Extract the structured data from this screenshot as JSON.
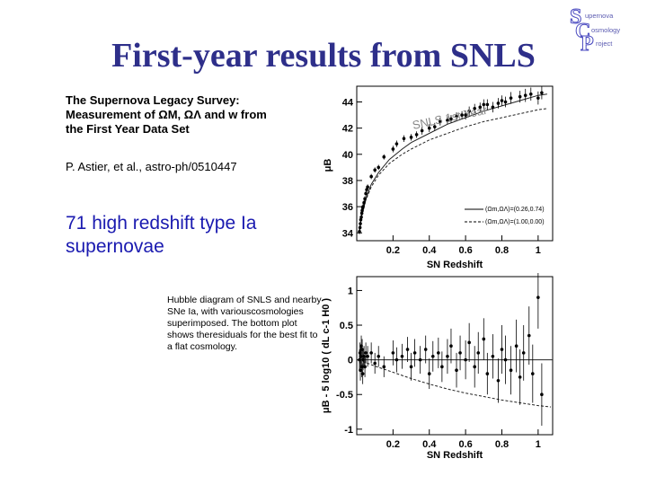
{
  "slide": {
    "title": "First-year results from SNLS",
    "paper_title_lines": [
      "The Supernova Legacy Survey:",
      "Measurement of ΩM, ΩΛ and w from",
      "the First Year Data Set"
    ],
    "authors": "P. Astier, et al., astro-ph/0510447",
    "highlight": "71 high redshift type Ia supernovae",
    "caption": "Hubble diagram of SNLS and nearby SNe Ia, with variouscosmologies superimposed. The bottom plot shows theresiduals for the best fit to a flat cosmology."
  },
  "logo": {
    "text_lines": [
      "upernova",
      "osmology",
      "roject"
    ],
    "letters": [
      "S",
      "C",
      "P"
    ],
    "colors": {
      "outline": "#4a4ac0",
      "text": "#5a5ab0"
    }
  },
  "chart_data": [
    {
      "type": "scatter",
      "title": "",
      "annotation": "SNLS 1st Year",
      "xlabel": "SN Redshift",
      "ylabel": "μB",
      "xlim": [
        0,
        1.08
      ],
      "ylim": [
        33.4,
        45.2
      ],
      "xticks": [
        "0.2",
        "0.4",
        "0.6",
        "0.8",
        "1"
      ],
      "xtick_values": [
        0.2,
        0.4,
        0.6,
        0.8,
        1.0
      ],
      "yticks": [
        "34",
        "36",
        "38",
        "40",
        "42",
        "44"
      ],
      "ytick_values": [
        34,
        36,
        38,
        40,
        42,
        44
      ],
      "legend": [
        {
          "label": "(Ωm,ΩΛ)=(0.26,0.74)",
          "style": "solid"
        },
        {
          "label": "(Ωm,ΩΛ)=(1.00,0.00)",
          "style": "dashed"
        }
      ],
      "legend_position": "right",
      "grid": false,
      "series": [
        {
          "name": "(Ωm,ΩΛ)=(0.26,0.74)",
          "style": "solid",
          "x": [
            0.015,
            0.02,
            0.03,
            0.05,
            0.08,
            0.12,
            0.18,
            0.25,
            0.3,
            0.4,
            0.5,
            0.6,
            0.7,
            0.8,
            0.9,
            1.0,
            1.05
          ],
          "y": [
            34.0,
            34.6,
            35.5,
            36.6,
            37.7,
            38.6,
            39.6,
            40.4,
            40.9,
            41.6,
            42.3,
            42.8,
            43.3,
            43.7,
            44.1,
            44.5,
            44.6
          ]
        },
        {
          "name": "(Ωm,ΩΛ)=(1.00,0.00)",
          "style": "dashed",
          "x": [
            0.015,
            0.02,
            0.03,
            0.05,
            0.08,
            0.12,
            0.18,
            0.25,
            0.3,
            0.4,
            0.5,
            0.6,
            0.7,
            0.8,
            0.9,
            1.0,
            1.05
          ],
          "y": [
            34.0,
            34.6,
            35.5,
            36.5,
            37.5,
            38.4,
            39.3,
            40.0,
            40.4,
            41.1,
            41.6,
            42.1,
            42.5,
            42.8,
            43.1,
            43.4,
            43.5
          ]
        }
      ],
      "points": {
        "x": [
          0.015,
          0.018,
          0.02,
          0.022,
          0.025,
          0.028,
          0.03,
          0.033,
          0.035,
          0.04,
          0.045,
          0.05,
          0.055,
          0.06,
          0.08,
          0.1,
          0.12,
          0.15,
          0.2,
          0.22,
          0.26,
          0.3,
          0.33,
          0.36,
          0.4,
          0.43,
          0.46,
          0.5,
          0.52,
          0.55,
          0.58,
          0.6,
          0.62,
          0.65,
          0.68,
          0.7,
          0.72,
          0.75,
          0.78,
          0.8,
          0.82,
          0.85,
          0.9,
          0.93,
          0.96,
          1.0,
          1.02
        ],
        "y": [
          34.1,
          34.4,
          34.7,
          35.0,
          35.2,
          35.5,
          35.7,
          35.9,
          36.0,
          36.3,
          36.6,
          37.0,
          37.3,
          37.5,
          38.3,
          38.8,
          39.0,
          39.8,
          40.4,
          40.8,
          41.2,
          41.3,
          41.5,
          41.8,
          42.0,
          42.1,
          42.5,
          42.6,
          42.7,
          42.9,
          43.0,
          43.0,
          43.3,
          43.5,
          43.6,
          43.8,
          43.8,
          43.6,
          43.9,
          44.1,
          44.0,
          44.3,
          44.4,
          44.5,
          44.6,
          44.3,
          44.7
        ],
        "err": [
          0.2,
          0.2,
          0.2,
          0.2,
          0.2,
          0.2,
          0.2,
          0.2,
          0.2,
          0.2,
          0.2,
          0.2,
          0.2,
          0.2,
          0.2,
          0.2,
          0.2,
          0.2,
          0.25,
          0.25,
          0.25,
          0.25,
          0.25,
          0.3,
          0.3,
          0.3,
          0.3,
          0.3,
          0.3,
          0.3,
          0.3,
          0.35,
          0.35,
          0.35,
          0.35,
          0.4,
          0.4,
          0.4,
          0.4,
          0.4,
          0.4,
          0.45,
          0.45,
          0.5,
          0.5,
          0.5,
          0.5
        ]
      }
    },
    {
      "type": "scatter",
      "title": "",
      "xlabel": "SN Redshift",
      "ylabel": "μB - 5 log10 ( dL c-1 H0 )",
      "xlim": [
        0,
        1.08
      ],
      "ylim": [
        -1.08,
        1.2
      ],
      "xticks": [
        "0.2",
        "0.4",
        "0.6",
        "0.8",
        "1"
      ],
      "xtick_values": [
        0.2,
        0.4,
        0.6,
        0.8,
        1.0
      ],
      "yticks": [
        "-1",
        "-0.5",
        "0",
        "0.5",
        "1"
      ],
      "ytick_values": [
        -1,
        -0.5,
        0,
        0.5,
        1
      ],
      "grid": false,
      "series": [
        {
          "name": "",
          "style": "solid",
          "x": [
            0.0,
            1.08
          ],
          "y": [
            0.0,
            0.0
          ]
        },
        {
          "name": "",
          "style": "dashed",
          "x": [
            0.01,
            0.05,
            0.1,
            0.2,
            0.3,
            0.4,
            0.5,
            0.6,
            0.7,
            0.8,
            0.9,
            1.0,
            1.07
          ],
          "y": [
            0.0,
            -0.04,
            -0.09,
            -0.18,
            -0.27,
            -0.35,
            -0.42,
            -0.48,
            -0.53,
            -0.58,
            -0.62,
            -0.66,
            -0.68
          ]
        }
      ],
      "points": {
        "x": [
          0.015,
          0.018,
          0.02,
          0.022,
          0.025,
          0.028,
          0.03,
          0.033,
          0.035,
          0.04,
          0.045,
          0.05,
          0.06,
          0.08,
          0.1,
          0.12,
          0.15,
          0.2,
          0.22,
          0.25,
          0.28,
          0.3,
          0.32,
          0.35,
          0.38,
          0.4,
          0.42,
          0.45,
          0.47,
          0.5,
          0.52,
          0.55,
          0.57,
          0.6,
          0.62,
          0.65,
          0.67,
          0.7,
          0.72,
          0.75,
          0.78,
          0.8,
          0.82,
          0.85,
          0.88,
          0.9,
          0.92,
          0.95,
          0.97,
          1.0,
          1.02
        ],
        "y": [
          0.0,
          0.1,
          -0.15,
          0.05,
          0.2,
          -0.1,
          0.15,
          -0.2,
          0.0,
          0.05,
          -0.1,
          0.1,
          0.05,
          0.1,
          -0.05,
          0.05,
          -0.1,
          0.1,
          0.0,
          0.05,
          0.15,
          -0.1,
          0.1,
          0.0,
          0.15,
          -0.2,
          0.05,
          0.1,
          -0.1,
          0.05,
          0.2,
          -0.15,
          0.1,
          0.0,
          0.25,
          -0.1,
          0.1,
          0.3,
          -0.2,
          0.05,
          -0.3,
          0.15,
          0.0,
          -0.15,
          0.2,
          -0.25,
          0.1,
          0.35,
          -0.2,
          0.9,
          -0.5
        ],
        "err": [
          0.15,
          0.15,
          0.15,
          0.15,
          0.15,
          0.15,
          0.15,
          0.15,
          0.15,
          0.15,
          0.15,
          0.15,
          0.15,
          0.15,
          0.15,
          0.15,
          0.15,
          0.18,
          0.18,
          0.18,
          0.18,
          0.2,
          0.2,
          0.2,
          0.2,
          0.22,
          0.22,
          0.22,
          0.22,
          0.25,
          0.25,
          0.25,
          0.25,
          0.28,
          0.28,
          0.3,
          0.3,
          0.3,
          0.3,
          0.32,
          0.32,
          0.35,
          0.35,
          0.35,
          0.38,
          0.4,
          0.4,
          0.42,
          0.42,
          0.45,
          0.45
        ]
      }
    }
  ]
}
